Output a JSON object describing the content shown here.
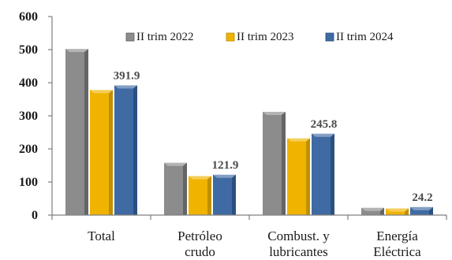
{
  "chart_data": {
    "type": "bar",
    "categories": [
      [
        "Total"
      ],
      [
        "Petróleo",
        "crudo"
      ],
      [
        "Combust. y",
        "lubricantes"
      ],
      [
        "Energía",
        "Eléctrica"
      ]
    ],
    "series": [
      {
        "name": "II trim 2022",
        "values": [
          502,
          158,
          312,
          22
        ],
        "color": "#8c8c8c",
        "shade": "#5e5e5e"
      },
      {
        "name": "II trim 2023",
        "values": [
          378,
          118,
          232,
          20
        ],
        "color": "#f0b400",
        "shade": "#b98a00"
      },
      {
        "name": "II trim 2024",
        "values": [
          391.9,
          121.9,
          245.8,
          24.2
        ],
        "color": "#3f6aa3",
        "shade": "#294b78"
      }
    ],
    "data_labels": [
      "391.9",
      "121.9",
      "245.8",
      "24.2"
    ],
    "yticks": [
      "0",
      "100",
      "200",
      "300",
      "400",
      "500",
      "600"
    ],
    "ylim": [
      0,
      600
    ],
    "legend_position": "top-right",
    "grid": false
  }
}
